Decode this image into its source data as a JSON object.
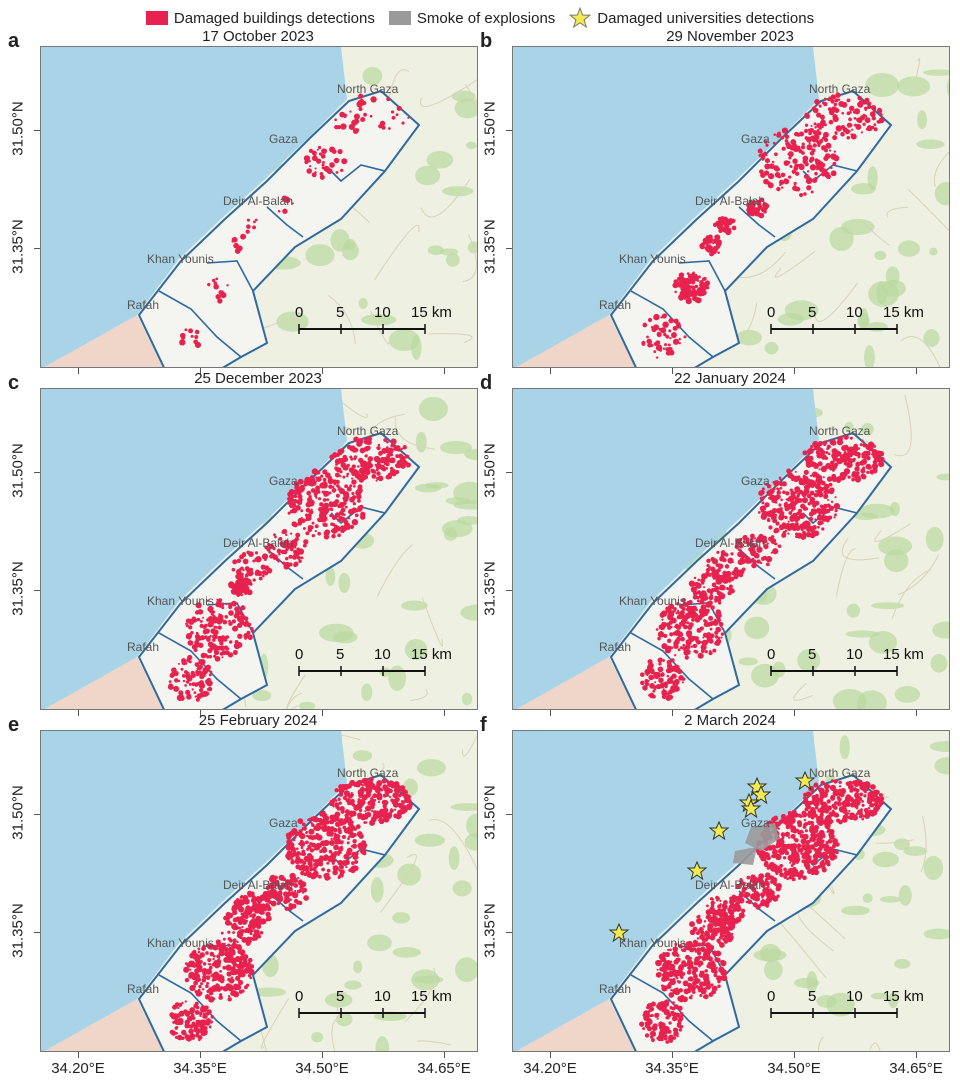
{
  "legend": {
    "damaged_buildings": "Damaged buildings detections",
    "smoke": "Smoke of explosions",
    "universities": "Damaged universities detections",
    "colors": {
      "damaged": "#e8224e",
      "smoke": "#9a9a9a",
      "star": "#f2ea4f"
    }
  },
  "panels": [
    {
      "letter": "a",
      "date": "17 October 2023",
      "intensity": 0.15
    },
    {
      "letter": "b",
      "date": "29 November 2023",
      "intensity": 0.45
    },
    {
      "letter": "c",
      "date": "25 December 2023",
      "intensity": 0.65
    },
    {
      "letter": "d",
      "date": "22 January 2024",
      "intensity": 0.75
    },
    {
      "letter": "e",
      "date": "25 February 2024",
      "intensity": 0.9
    },
    {
      "letter": "f",
      "date": "2 March 2024",
      "intensity": 0.95
    }
  ],
  "places": {
    "north_gaza": "North Gaza",
    "gaza": "Gaza",
    "deir": "Deir Al-Balah",
    "khan": "Khan Younis",
    "rafah": "Rafah"
  },
  "scalebar": {
    "t0": "0",
    "t5": "5",
    "t10": "10",
    "t15": "15 km"
  },
  "axes": {
    "lat_upper": "31.50°N",
    "lat_lower": "31.35°N",
    "lon": [
      "34.20°E",
      "34.35°E",
      "34.50°E",
      "34.65°E"
    ]
  },
  "map_colors": {
    "sea": "#a9d3e6",
    "land": "#eef0e2",
    "strip": "#f4f4f0",
    "border": "#2e6aa0",
    "green": "#b9d9a0",
    "egypt": "#f0d6c8"
  }
}
